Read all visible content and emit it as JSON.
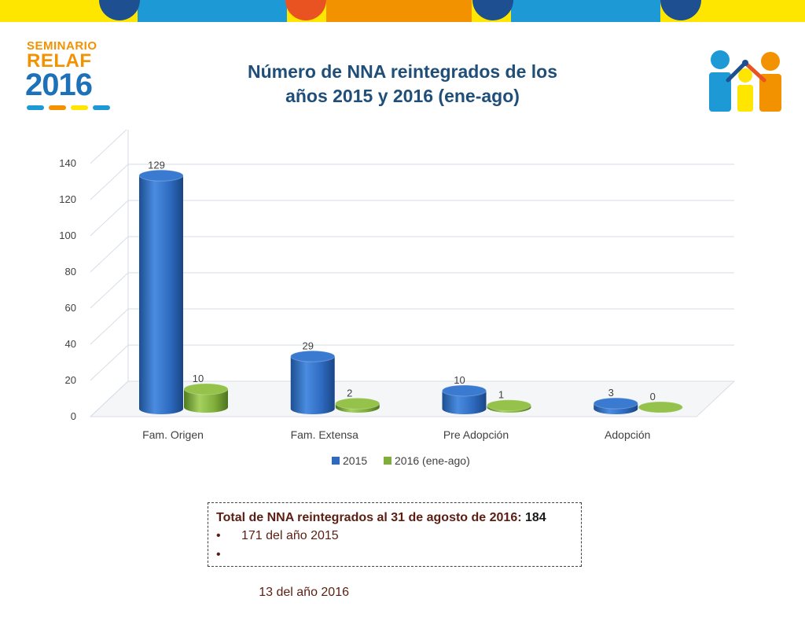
{
  "title_line1": "Número de NNA reintegrados de los",
  "title_line2": "años 2015 y 2016 (ene-ago)",
  "logo_left": {
    "line1": "SEMINARIO",
    "line2": "RELAF",
    "line3": "2016"
  },
  "colors": {
    "band_yellow": "#ffe600",
    "band_blue": "#1d9ad6",
    "band_orange": "#f39200",
    "band_red": "#e85321",
    "band_navy": "#1d4f91",
    "series_2015": "#2e6bc0",
    "series_2016": "#7fae3a",
    "title": "#1f4e79"
  },
  "chart_data": {
    "type": "bar",
    "categories": [
      "Fam. Origen",
      "Fam. Extensa",
      "Pre Adopción",
      "Adopción"
    ],
    "series": [
      {
        "name": "2015",
        "values": [
          129,
          29,
          10,
          3
        ]
      },
      {
        "name": "2016 (ene-ago)",
        "values": [
          10,
          2,
          1,
          0
        ]
      }
    ],
    "ylim": [
      0,
      140
    ],
    "yticks": [
      0,
      20,
      40,
      60,
      80,
      100,
      120,
      140
    ],
    "grid": true,
    "legend": "bottom",
    "style": "3d-cylinder"
  },
  "note": {
    "header": "Total de NNA reintegrados al 31 de agosto de 2016:",
    "header_value": "184",
    "items": [
      {
        "bullet": "•",
        "text": "171 del año 2015"
      },
      {
        "bullet": "•",
        "text": " 13 del año 2016"
      }
    ]
  }
}
